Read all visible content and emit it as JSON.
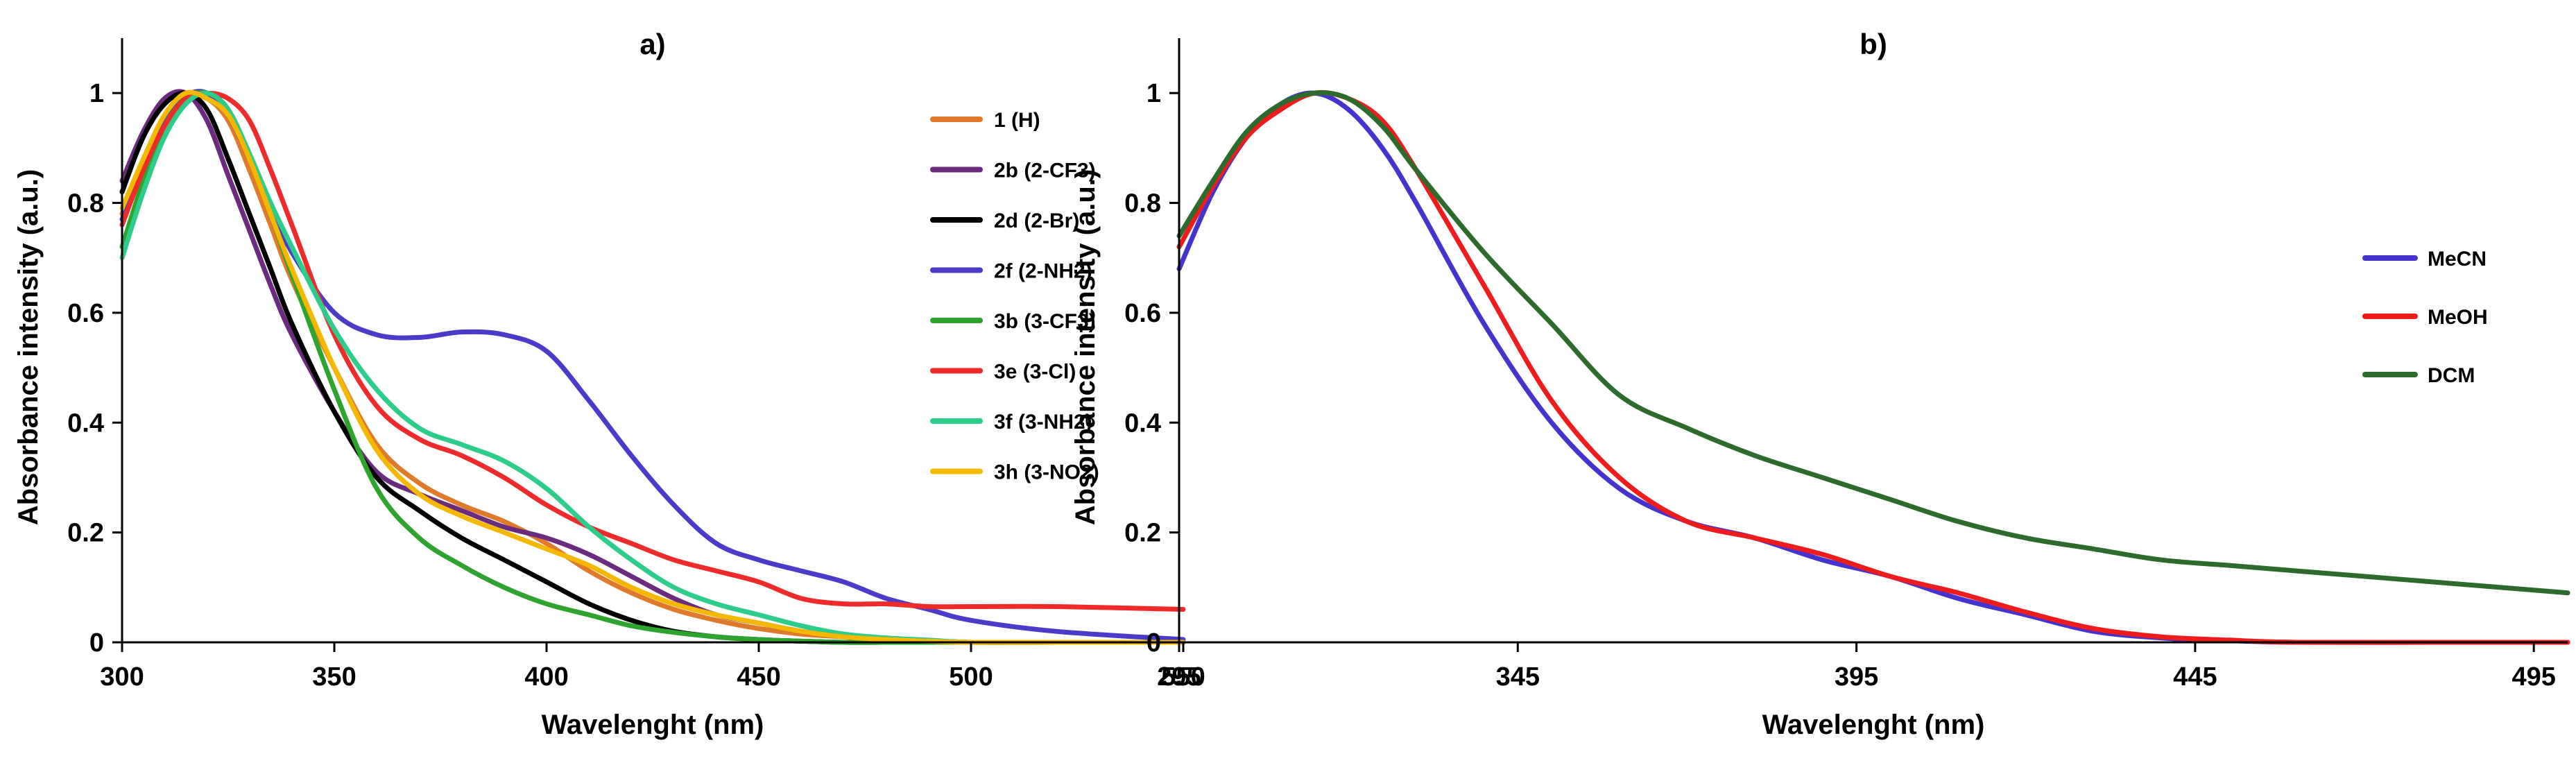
{
  "chart_data": [
    {
      "type": "line",
      "title": "a)",
      "xlabel": "Wavelenght (nm)",
      "ylabel": "Absorbance intensity (a.u.)",
      "xlim": [
        300,
        550
      ],
      "ylim": [
        0,
        1.1
      ],
      "xticks": [
        300,
        350,
        400,
        450,
        500,
        550
      ],
      "xtick_labels": [
        "300",
        "350",
        "400",
        "450",
        "500",
        "550"
      ],
      "yticks": [
        0,
        0.2,
        0.4,
        0.6,
        0.8,
        1
      ],
      "ytick_labels": [
        "0",
        "0.2",
        "0.4",
        "0.6",
        "0.8",
        "1"
      ],
      "grid": false,
      "legend_position": "right",
      "series": [
        {
          "name": "1 (H)",
          "color": "#e07a2b",
          "x": [
            300,
            305,
            310,
            315,
            320,
            325,
            330,
            335,
            340,
            350,
            360,
            370,
            380,
            390,
            400,
            410,
            420,
            430,
            440,
            450,
            460,
            470,
            480,
            490,
            500,
            520,
            550
          ],
          "y": [
            0.78,
            0.86,
            0.94,
            0.99,
            0.99,
            0.95,
            0.86,
            0.76,
            0.66,
            0.5,
            0.36,
            0.29,
            0.25,
            0.22,
            0.18,
            0.13,
            0.09,
            0.06,
            0.04,
            0.025,
            0.015,
            0.01,
            0.005,
            0.003,
            0,
            0,
            0
          ]
        },
        {
          "name": "2b (2-CF3)",
          "color": "#6b2c7e",
          "x": [
            300,
            305,
            310,
            315,
            320,
            325,
            330,
            335,
            340,
            350,
            360,
            370,
            380,
            390,
            400,
            410,
            420,
            430,
            440,
            450,
            460,
            470,
            480,
            490,
            500,
            520,
            550
          ],
          "y": [
            0.84,
            0.93,
            0.99,
            1.0,
            0.95,
            0.85,
            0.75,
            0.65,
            0.56,
            0.42,
            0.31,
            0.27,
            0.24,
            0.21,
            0.19,
            0.16,
            0.12,
            0.08,
            0.05,
            0.035,
            0.02,
            0.01,
            0.005,
            0.003,
            0,
            0,
            0
          ]
        },
        {
          "name": "2d (2-Br)",
          "color": "#000000",
          "x": [
            300,
            305,
            310,
            315,
            320,
            325,
            330,
            335,
            340,
            350,
            360,
            370,
            380,
            390,
            400,
            410,
            420,
            430,
            440,
            450,
            460,
            470,
            480,
            490,
            500,
            520,
            550
          ],
          "y": [
            0.82,
            0.92,
            0.98,
            1.0,
            0.97,
            0.88,
            0.78,
            0.68,
            0.58,
            0.42,
            0.3,
            0.24,
            0.19,
            0.15,
            0.11,
            0.07,
            0.04,
            0.02,
            0.01,
            0.005,
            0.002,
            0,
            0,
            0,
            0,
            0,
            0
          ]
        },
        {
          "name": "2f (2-NH2)",
          "color": "#4a3bc9",
          "x": [
            300,
            305,
            310,
            315,
            320,
            325,
            330,
            335,
            340,
            350,
            360,
            370,
            380,
            390,
            400,
            410,
            420,
            430,
            440,
            450,
            460,
            470,
            480,
            490,
            500,
            520,
            550
          ],
          "y": [
            0.77,
            0.87,
            0.95,
            0.995,
            1.0,
            0.96,
            0.88,
            0.79,
            0.71,
            0.6,
            0.56,
            0.555,
            0.565,
            0.56,
            0.53,
            0.44,
            0.34,
            0.25,
            0.18,
            0.15,
            0.13,
            0.11,
            0.08,
            0.06,
            0.04,
            0.02,
            0.005
          ]
        },
        {
          "name": "3b (3-CF3)",
          "color": "#2ea32e",
          "x": [
            300,
            305,
            310,
            315,
            320,
            325,
            330,
            335,
            340,
            350,
            360,
            370,
            380,
            390,
            400,
            410,
            420,
            430,
            440,
            450,
            460,
            470,
            480,
            490,
            500,
            520,
            550
          ],
          "y": [
            0.72,
            0.84,
            0.94,
            0.99,
            1.0,
            0.97,
            0.88,
            0.78,
            0.67,
            0.46,
            0.28,
            0.19,
            0.14,
            0.1,
            0.07,
            0.05,
            0.03,
            0.018,
            0.01,
            0.005,
            0.002,
            0,
            0,
            0,
            0,
            0,
            0
          ]
        },
        {
          "name": "3e (3-Cl)",
          "color": "#ee2b2b",
          "x": [
            300,
            305,
            310,
            315,
            320,
            325,
            330,
            335,
            340,
            350,
            360,
            370,
            380,
            390,
            400,
            410,
            420,
            430,
            440,
            450,
            460,
            470,
            480,
            490,
            500,
            520,
            550
          ],
          "y": [
            0.76,
            0.86,
            0.94,
            0.99,
            1.0,
            0.99,
            0.95,
            0.86,
            0.76,
            0.56,
            0.43,
            0.37,
            0.34,
            0.3,
            0.25,
            0.21,
            0.18,
            0.15,
            0.13,
            0.11,
            0.08,
            0.07,
            0.07,
            0.065,
            0.065,
            0.065,
            0.06
          ]
        },
        {
          "name": "3f (3-NH2)",
          "color": "#2ecc8a",
          "x": [
            300,
            305,
            310,
            315,
            320,
            325,
            330,
            335,
            340,
            350,
            360,
            370,
            380,
            390,
            400,
            410,
            420,
            430,
            440,
            450,
            460,
            470,
            480,
            490,
            500,
            520,
            550
          ],
          "y": [
            0.7,
            0.82,
            0.92,
            0.98,
            1.0,
            0.97,
            0.89,
            0.8,
            0.72,
            0.57,
            0.46,
            0.39,
            0.36,
            0.33,
            0.28,
            0.21,
            0.15,
            0.1,
            0.07,
            0.05,
            0.03,
            0.015,
            0.008,
            0.004,
            0,
            0,
            0
          ]
        },
        {
          "name": "3h (3-NO2)",
          "color": "#f5b800",
          "x": [
            300,
            305,
            310,
            315,
            320,
            325,
            330,
            335,
            340,
            350,
            360,
            370,
            380,
            390,
            400,
            410,
            420,
            430,
            440,
            450,
            460,
            470,
            480,
            490,
            500,
            520,
            550
          ],
          "y": [
            0.79,
            0.88,
            0.96,
            1.0,
            0.99,
            0.96,
            0.88,
            0.78,
            0.68,
            0.5,
            0.35,
            0.27,
            0.23,
            0.2,
            0.17,
            0.14,
            0.1,
            0.07,
            0.05,
            0.035,
            0.02,
            0.01,
            0.005,
            0.002,
            0,
            0,
            0
          ]
        }
      ]
    },
    {
      "type": "line",
      "title": "b)",
      "xlabel": "Wavelenght (nm)",
      "ylabel": "Absorbance intensity (a.u.)",
      "xlim": [
        295,
        500
      ],
      "ylim": [
        0,
        1.1
      ],
      "xticks": [
        295,
        345,
        395,
        445,
        495
      ],
      "xtick_labels": [
        "295",
        "345",
        "395",
        "445",
        "495"
      ],
      "yticks": [
        0,
        0.2,
        0.4,
        0.6,
        0.8,
        1
      ],
      "ytick_labels": [
        "0",
        "0.2",
        "0.4",
        "0.6",
        "0.8",
        "1"
      ],
      "grid": false,
      "legend_position": "right",
      "series": [
        {
          "name": "MeCN",
          "color": "#4433cc",
          "x": [
            295,
            300,
            305,
            310,
            315,
            320,
            325,
            330,
            340,
            350,
            360,
            370,
            380,
            390,
            400,
            410,
            420,
            430,
            440,
            450,
            460,
            480,
            500
          ],
          "y": [
            0.68,
            0.82,
            0.92,
            0.98,
            1.0,
            0.97,
            0.9,
            0.8,
            0.58,
            0.4,
            0.28,
            0.22,
            0.19,
            0.15,
            0.12,
            0.08,
            0.05,
            0.02,
            0.008,
            0.003,
            0,
            0,
            0
          ]
        },
        {
          "name": "MeOH",
          "color": "#ee1c1c",
          "x": [
            295,
            300,
            305,
            310,
            315,
            320,
            325,
            330,
            340,
            350,
            360,
            370,
            380,
            390,
            400,
            410,
            420,
            430,
            440,
            450,
            460,
            480,
            500
          ],
          "y": [
            0.72,
            0.83,
            0.92,
            0.97,
            1.0,
            0.99,
            0.95,
            0.86,
            0.65,
            0.44,
            0.3,
            0.22,
            0.19,
            0.16,
            0.12,
            0.09,
            0.055,
            0.025,
            0.01,
            0.004,
            0,
            0,
            0
          ]
        },
        {
          "name": "DCM",
          "color": "#2d6b2d",
          "x": [
            295,
            300,
            305,
            310,
            315,
            320,
            325,
            330,
            340,
            350,
            360,
            370,
            380,
            390,
            400,
            410,
            420,
            430,
            440,
            450,
            460,
            480,
            500
          ],
          "y": [
            0.74,
            0.84,
            0.93,
            0.98,
            1.0,
            0.99,
            0.94,
            0.86,
            0.71,
            0.58,
            0.45,
            0.39,
            0.34,
            0.3,
            0.26,
            0.22,
            0.19,
            0.17,
            0.15,
            0.14,
            0.13,
            0.11,
            0.09
          ]
        }
      ]
    }
  ]
}
